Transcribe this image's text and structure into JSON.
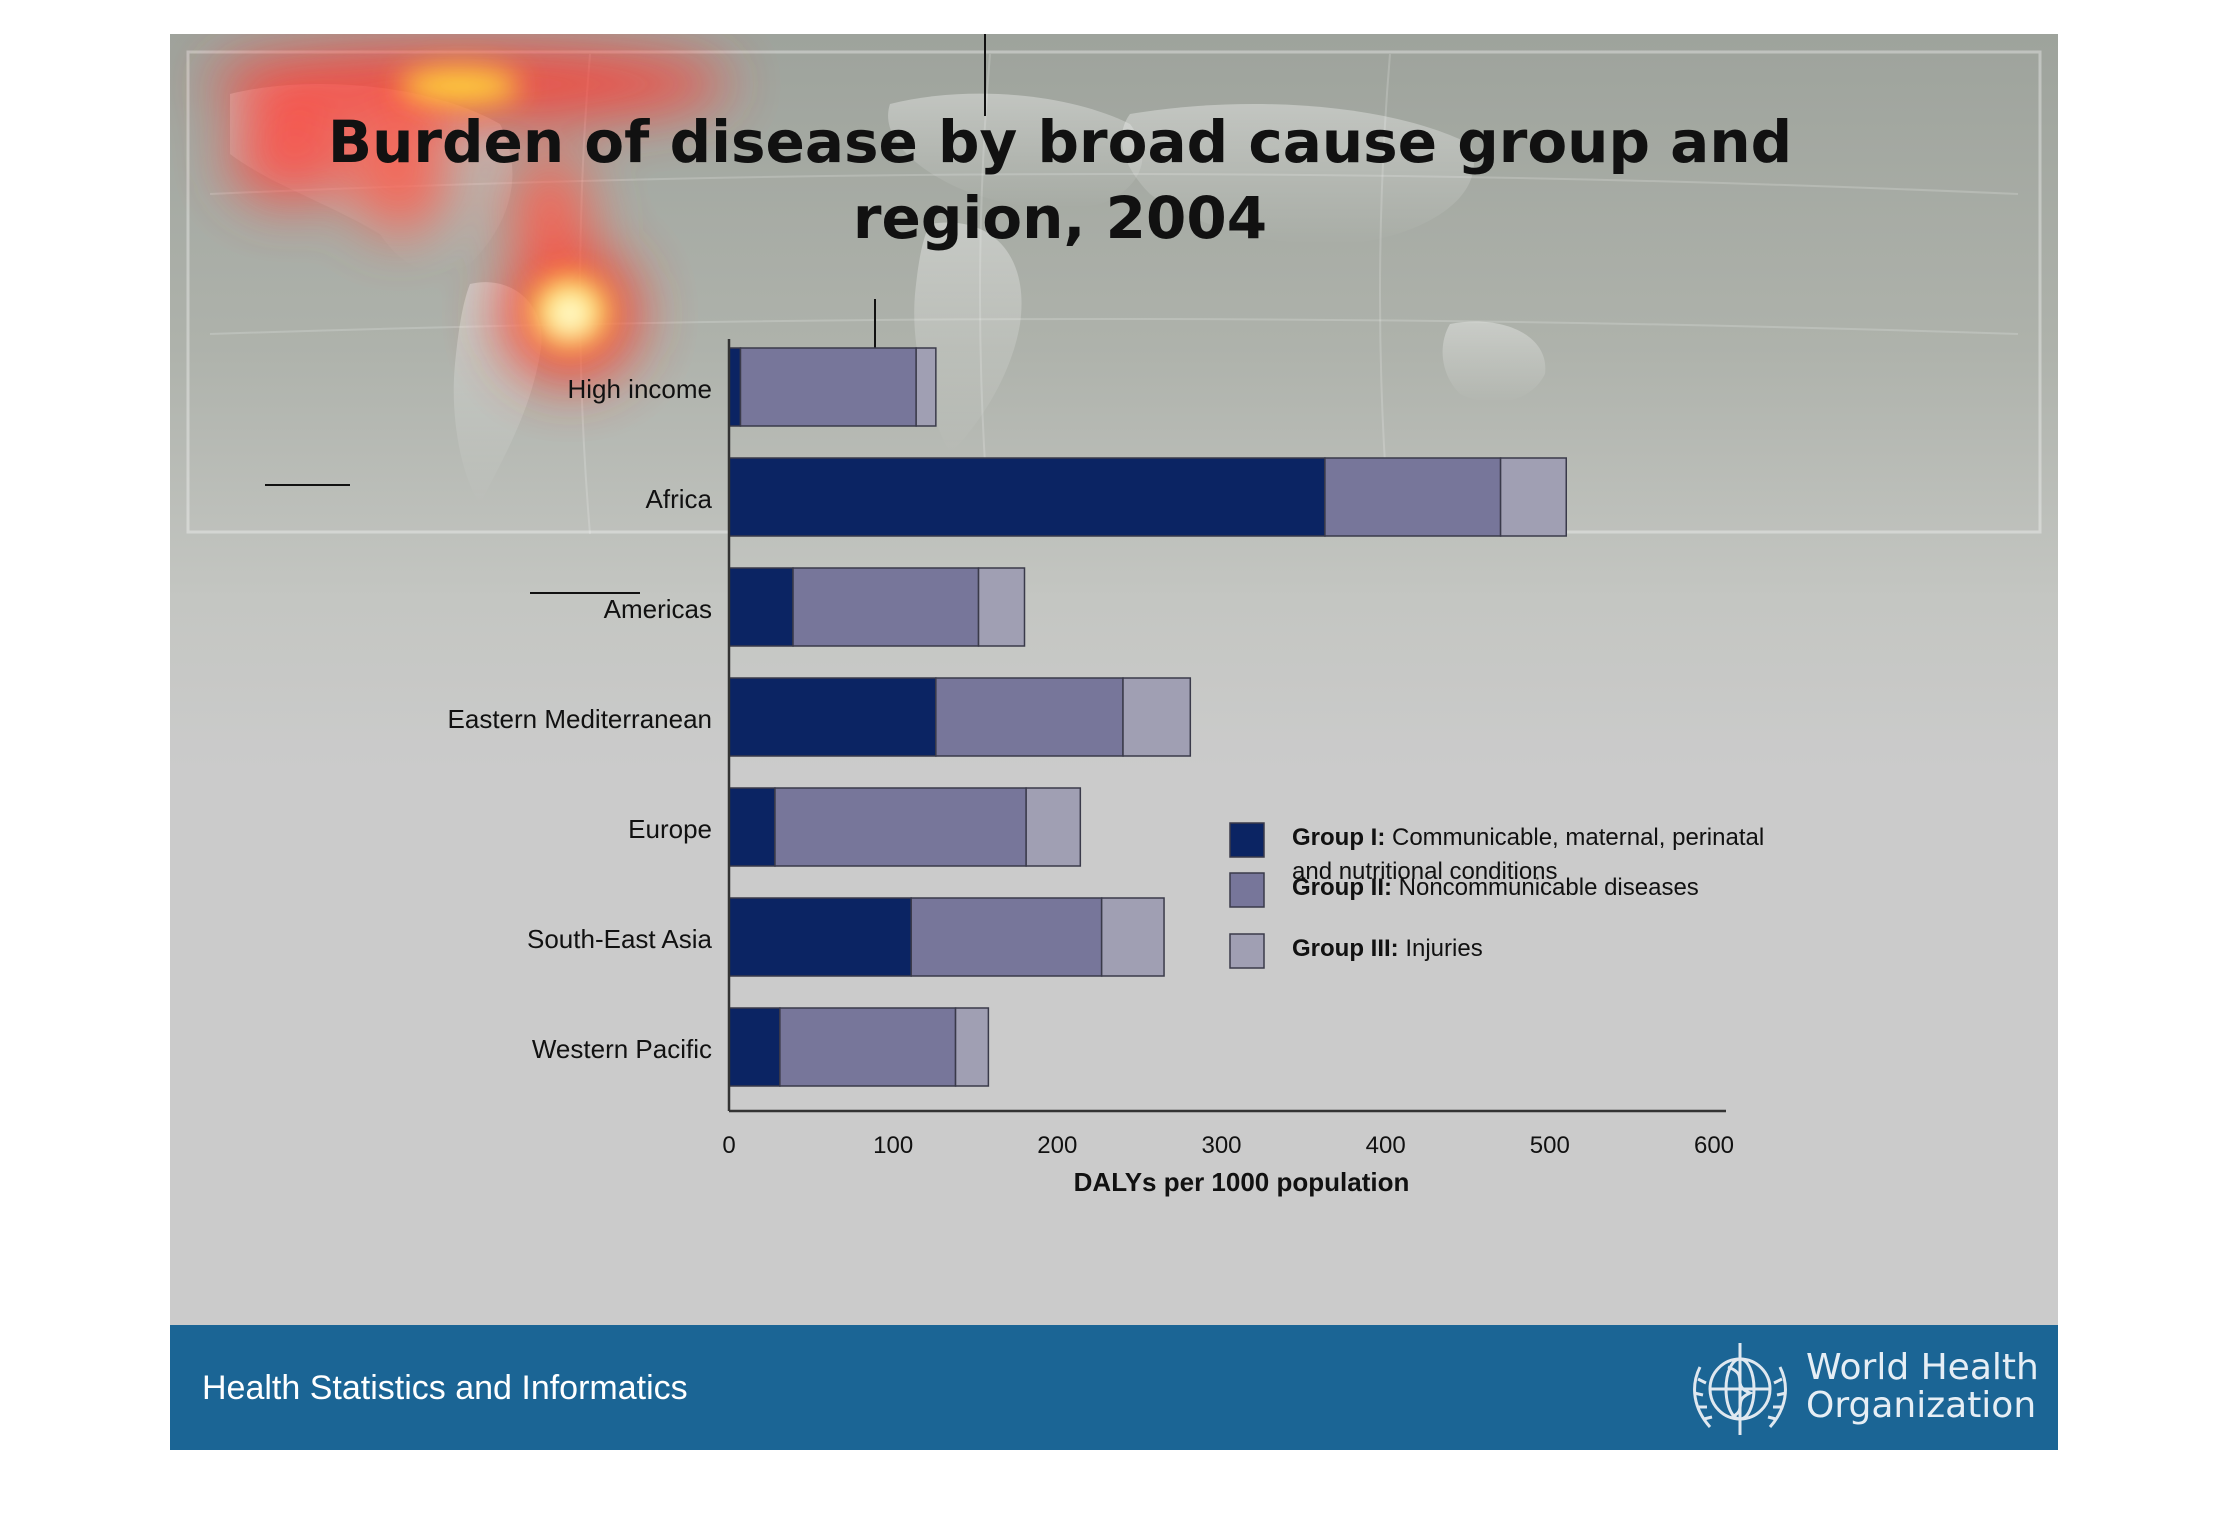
{
  "slide": {
    "title_line1": "Burden of disease by broad cause group and",
    "title_line2": "region, 2004"
  },
  "footer": {
    "left_text": "Health Statistics and Informatics",
    "org_line1": "World Health",
    "org_line2": "Organization",
    "logo_icon": "who-emblem-icon"
  },
  "chart_data": {
    "type": "bar",
    "orientation": "horizontal",
    "stacked": true,
    "categories": [
      "High income",
      "Africa",
      "Americas",
      "Eastern Mediterranean",
      "Europe",
      "South-East Asia",
      "Western Pacific"
    ],
    "series": [
      {
        "name": "Group I:",
        "description": "Communicable, maternal, perinatal and nutritional conditions",
        "color": "#0b2463",
        "values": [
          7,
          363,
          39,
          126,
          28,
          111,
          31
        ]
      },
      {
        "name": "Group II:",
        "description": "Noncommunicable diseases",
        "color": "#77769a",
        "values": [
          107,
          107,
          113,
          114,
          153,
          116,
          107
        ]
      },
      {
        "name": "Group III:",
        "description": "Injuries",
        "color": "#a09fb3",
        "values": [
          12,
          40,
          28,
          41,
          33,
          38,
          20
        ]
      }
    ],
    "xlabel": "DALYs per 1000 population",
    "ylabel": "",
    "xlim": [
      0,
      600
    ],
    "xticks": [
      0,
      100,
      200,
      300,
      400,
      500,
      600
    ],
    "grid": false,
    "legend_position": "right"
  },
  "colors": {
    "footer_bg": "#1b6595",
    "axis": "#333333"
  }
}
